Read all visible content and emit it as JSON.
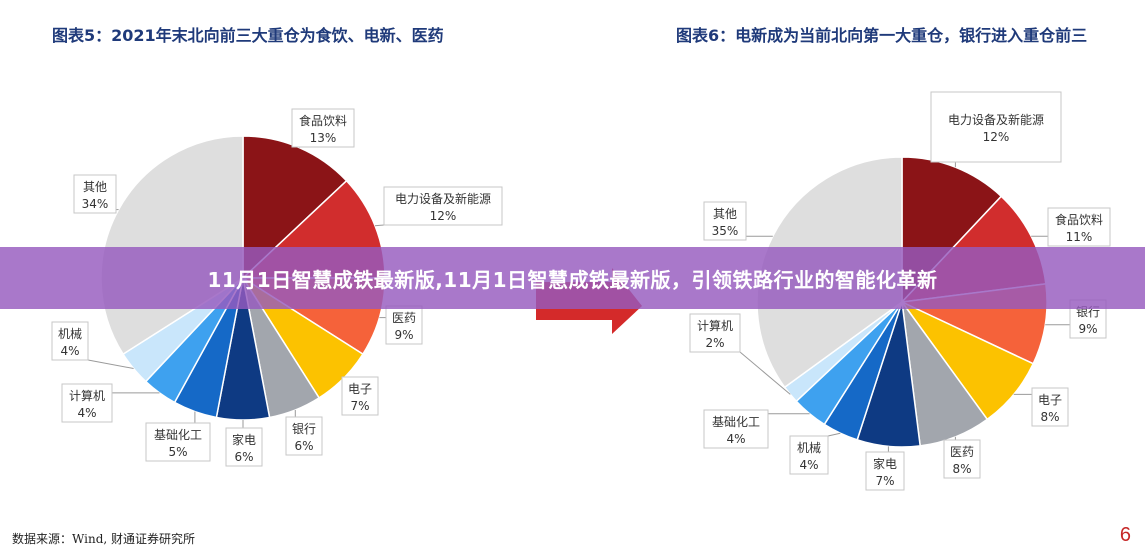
{
  "banner": {
    "text": "11月1日智慧成铁最新版,11月1日智慧成铁最新版，引领铁路行业的智能化革新"
  },
  "footer": {
    "source": "数据来源：Wind, 财通证券研究所",
    "page_number": "6"
  },
  "colors": {
    "dark_red": "#8b1417",
    "red": "#d12d2d",
    "orange_red": "#f5623a",
    "yellow": "#fcc200",
    "gray": "#a2a6ad",
    "navy": "#0e3a83",
    "blue": "#1569c7",
    "light_blue": "#3ea1ef",
    "pale_blue": "#c9e6fb",
    "light_gray": "#dedede"
  },
  "chart_data": [
    {
      "type": "pie",
      "title": "图表5：2021年末北向前三大重仓为食饮、电新、医药",
      "slices": [
        {
          "name": "食品饮料",
          "value": 13,
          "label": "13%",
          "color": "#8b1417"
        },
        {
          "name": "电力设备及新能源",
          "value": 12,
          "label": "12%",
          "color": "#d12d2d"
        },
        {
          "name": "医药",
          "value": 9,
          "label": "9%",
          "color": "#f5623a"
        },
        {
          "name": "电子",
          "value": 7,
          "label": "7%",
          "color": "#fcc200"
        },
        {
          "name": "银行",
          "value": 6,
          "label": "6%",
          "color": "#a2a6ad"
        },
        {
          "name": "家电",
          "value": 6,
          "label": "6%",
          "color": "#0e3a83"
        },
        {
          "name": "基础化工",
          "value": 5,
          "label": "5%",
          "color": "#1569c7"
        },
        {
          "name": "计算机",
          "value": 4,
          "label": "4%",
          "color": "#3ea1ef"
        },
        {
          "name": "机械",
          "value": 4,
          "label": "4%",
          "color": "#c9e6fb"
        },
        {
          "name": "其他",
          "value": 34,
          "label": "34%",
          "color": "#dedede"
        }
      ]
    },
    {
      "type": "pie",
      "title": "图表6：电新成为当前北向第一大重仓，银行进入重仓前三",
      "slices": [
        {
          "name": "电力设备及新能源",
          "value": 12,
          "label": "12%",
          "color": "#8b1417"
        },
        {
          "name": "食品饮料",
          "value": 11,
          "label": "11%",
          "color": "#d12d2d"
        },
        {
          "name": "银行",
          "value": 9,
          "label": "9%",
          "color": "#f5623a"
        },
        {
          "name": "电子",
          "value": 8,
          "label": "8%",
          "color": "#fcc200"
        },
        {
          "name": "医药",
          "value": 8,
          "label": "8%",
          "color": "#a2a6ad"
        },
        {
          "name": "家电",
          "value": 7,
          "label": "7%",
          "color": "#0e3a83"
        },
        {
          "name": "机械",
          "value": 4,
          "label": "4%",
          "color": "#1569c7"
        },
        {
          "name": "基础化工",
          "value": 4,
          "label": "4%",
          "color": "#3ea1ef"
        },
        {
          "name": "计算机",
          "value": 2,
          "label": "2%",
          "color": "#c9e6fb"
        },
        {
          "name": "其他",
          "value": 35,
          "label": "35%",
          "color": "#dedede"
        }
      ]
    }
  ]
}
